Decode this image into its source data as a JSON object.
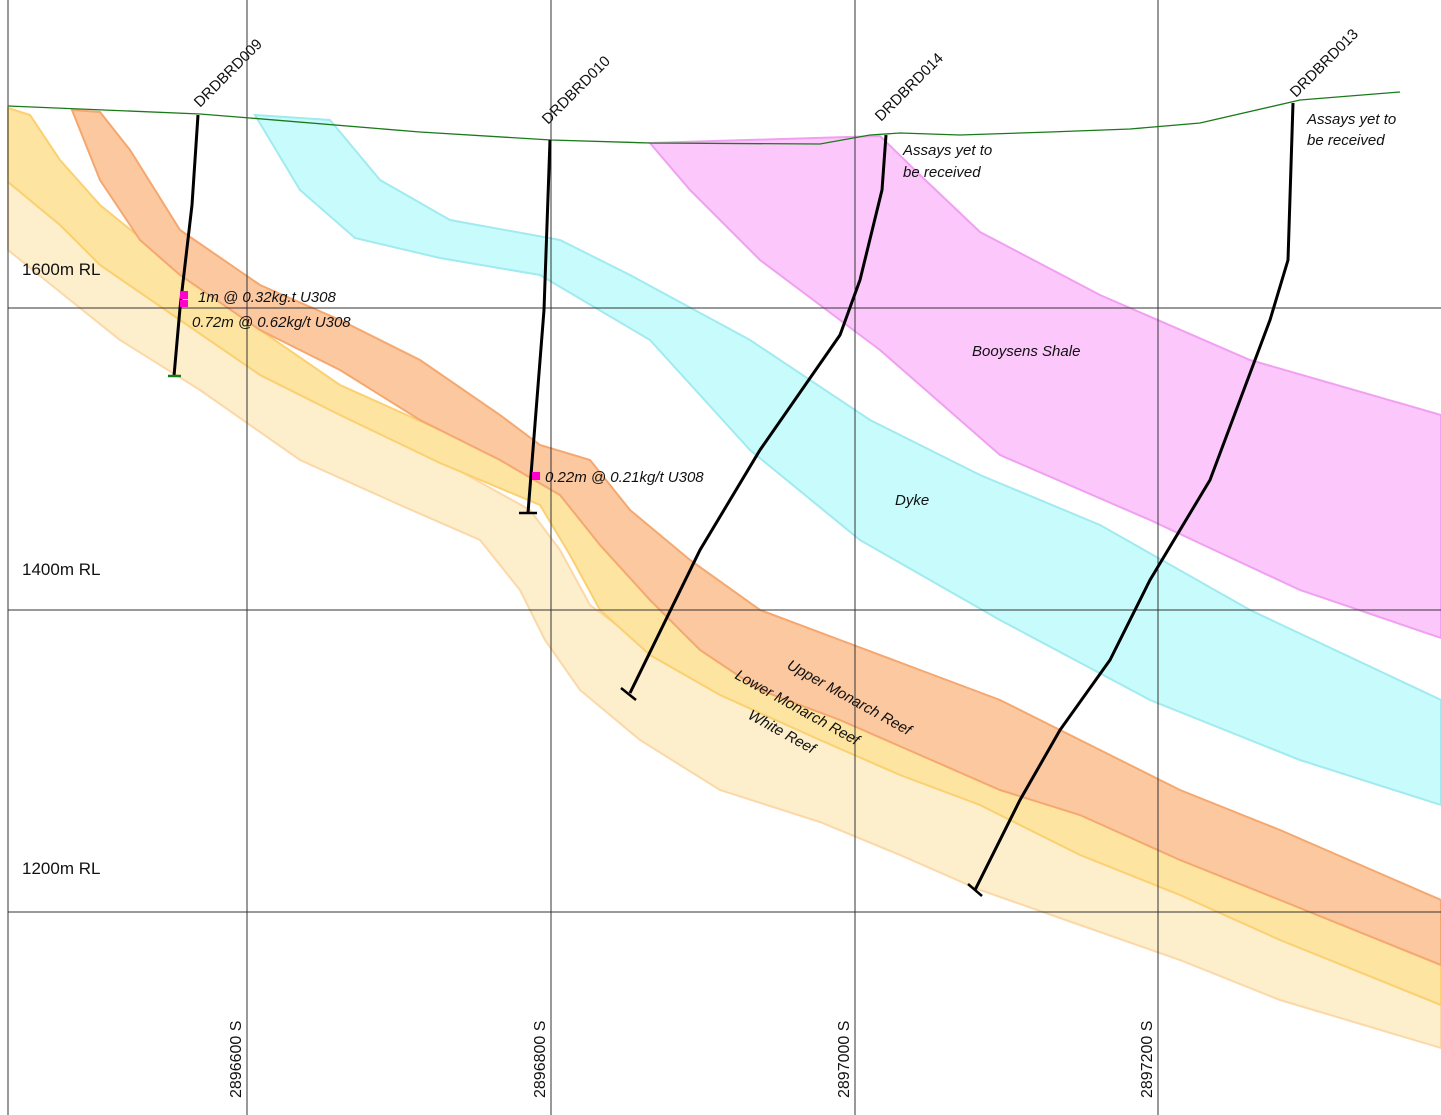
{
  "section": {
    "rl_labels": [
      "1600m RL",
      "1400m RL",
      "1200m RL"
    ],
    "northing_labels": [
      "2896600 S",
      "2896800 S",
      "2897000 S",
      "2897200 S"
    ]
  },
  "units": {
    "booysens_shale": {
      "label": "Booysens Shale",
      "color": "#fcc8fc"
    },
    "dyke": {
      "label": "Dyke",
      "color": "#c8fcfc"
    },
    "upper_monarch_reef": {
      "label": "Upper Monarch Reef",
      "color": "#fcc8a0"
    },
    "lower_monarch_reef": {
      "label": "Lower Monarch Reef",
      "color": "#fde4a0"
    },
    "white_reef": {
      "label": "White Reef",
      "color": "#fdeecc"
    }
  },
  "drillholes": [
    {
      "id": "DRDBRD009",
      "note": ""
    },
    {
      "id": "DRDBRD010",
      "note": ""
    },
    {
      "id": "DRDBRD014",
      "note": [
        "Assays yet to",
        "be received"
      ]
    },
    {
      "id": "DRDBRD013",
      "note": [
        "Assays yet to",
        "be received"
      ]
    }
  ],
  "intercepts": [
    "1m @ 0.32kg.t U308",
    "0.72m @ 0.62kg/t U308",
    "0.22m @ 0.21kg/t U308"
  ],
  "colors": {
    "topography": "#1a7a1a",
    "intercept_marker": "#ff00cc",
    "grid": "#333333"
  }
}
